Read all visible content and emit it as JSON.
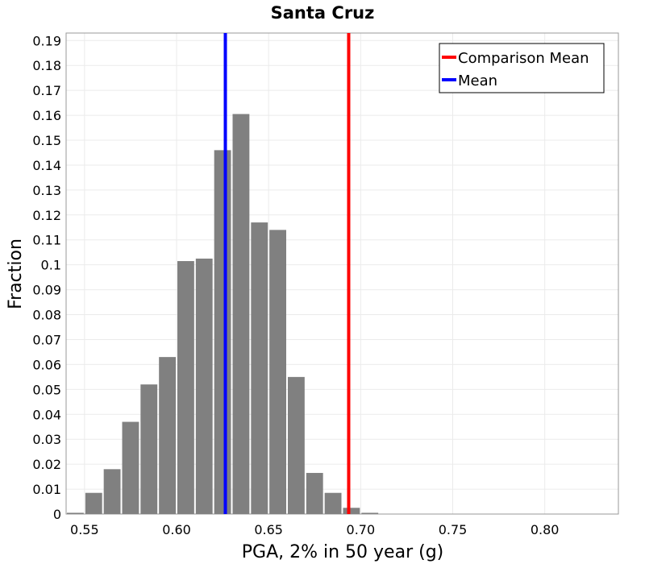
{
  "chart_data": {
    "type": "bar",
    "title": "Santa Cruz",
    "xlabel": "PGA, 2% in 50 year (g)",
    "ylabel": "Fraction",
    "xlim": [
      0.54,
      0.84
    ],
    "ylim": [
      0,
      0.193
    ],
    "grid": true,
    "legend_position": "top-right",
    "x_ticks": [
      "0.55",
      "0.60",
      "0.65",
      "0.70",
      "0.75",
      "0.80"
    ],
    "y_ticks": [
      "0",
      "0.01",
      "0.02",
      "0.03",
      "0.04",
      "0.05",
      "0.06",
      "0.07",
      "0.08",
      "0.09",
      "0.1",
      "0.11",
      "0.12",
      "0.13",
      "0.14",
      "0.15",
      "0.16",
      "0.17",
      "0.18",
      "0.19"
    ],
    "bin_width": 0.01,
    "bins": [
      {
        "x": 0.545,
        "value": 0.0005
      },
      {
        "x": 0.555,
        "value": 0.0085
      },
      {
        "x": 0.565,
        "value": 0.018
      },
      {
        "x": 0.575,
        "value": 0.037
      },
      {
        "x": 0.585,
        "value": 0.052
      },
      {
        "x": 0.595,
        "value": 0.063
      },
      {
        "x": 0.605,
        "value": 0.1015
      },
      {
        "x": 0.615,
        "value": 0.1025
      },
      {
        "x": 0.625,
        "value": 0.146
      },
      {
        "x": 0.635,
        "value": 0.1605
      },
      {
        "x": 0.645,
        "value": 0.117
      },
      {
        "x": 0.655,
        "value": 0.114
      },
      {
        "x": 0.665,
        "value": 0.055
      },
      {
        "x": 0.675,
        "value": 0.0165
      },
      {
        "x": 0.685,
        "value": 0.0085
      },
      {
        "x": 0.695,
        "value": 0.0025
      },
      {
        "x": 0.705,
        "value": 0.0005
      }
    ],
    "vertical_lines": [
      {
        "name": "Comparison Mean",
        "x": 0.6935,
        "color": "#ff0000"
      },
      {
        "name": "Mean",
        "x": 0.6265,
        "color": "#0000ff"
      }
    ],
    "bar_color": "#808080",
    "legend": [
      "Comparison Mean",
      "Mean"
    ]
  }
}
